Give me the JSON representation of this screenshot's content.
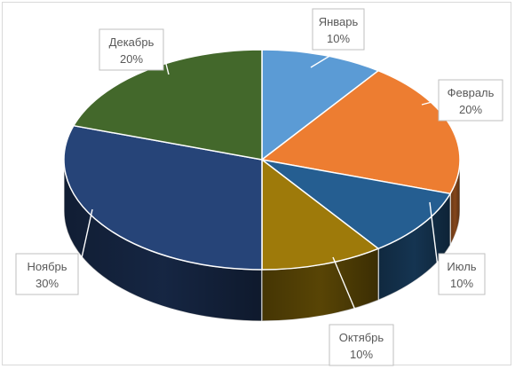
{
  "chart_data": {
    "type": "pie",
    "style": "3d",
    "title": "",
    "legend": "none",
    "categories": [
      "Январь",
      "Февраль",
      "Июль",
      "Октябрь",
      "Ноябрь",
      "Декабрь"
    ],
    "values": [
      10,
      20,
      10,
      10,
      30,
      20
    ],
    "data_labels": [
      "10%",
      "20%",
      "10%",
      "10%",
      "30%",
      "20%"
    ],
    "colors": [
      "#5b9bd5",
      "#ed7d31",
      "#255e91",
      "#9e7a0a",
      "#264478",
      "#43682b"
    ]
  }
}
